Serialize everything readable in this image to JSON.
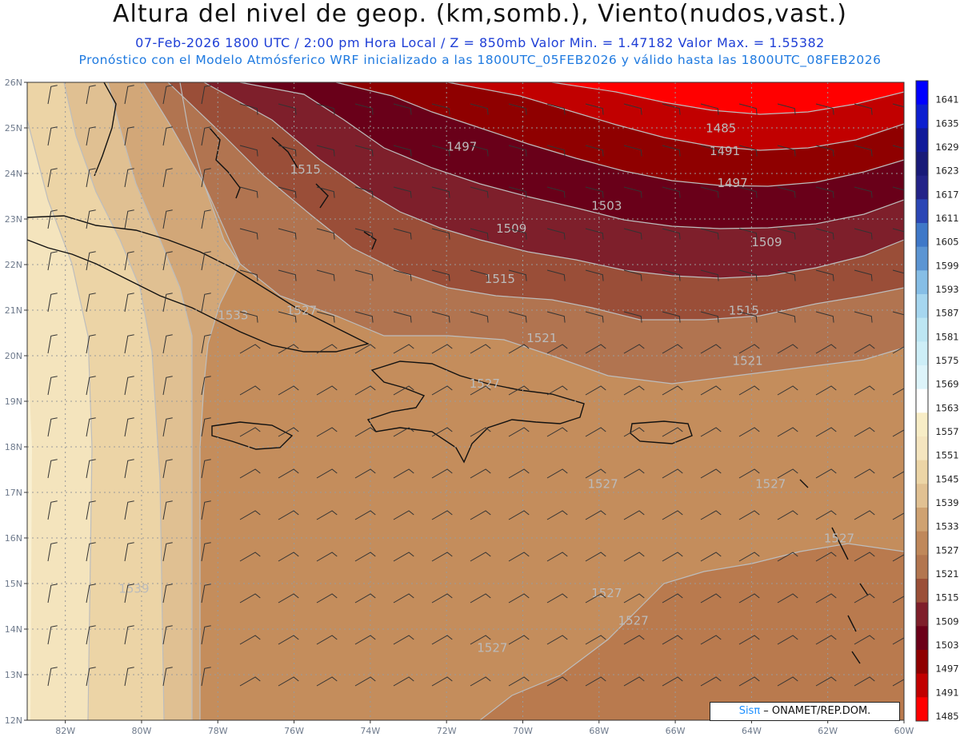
{
  "header": {
    "title": "Altura del nivel de geop. (km,somb.), Viento(nudos,vast.)",
    "line1": "07-Feb-2026  1800 UTC / 2:00 pm Hora Local / Z = 850mb    Valor Min. = 1.47182  Valor Max. = 1.55382",
    "line2": "Pronóstico con el Modelo Atmósferico WRF inicializado a las 1800UTC_05FEB2026 y válido hasta las  1800UTC_08FEB2026"
  },
  "map": {
    "lat_ticks": [
      "26N",
      "25N",
      "24N",
      "23N",
      "22N",
      "21N",
      "20N",
      "19N",
      "18N",
      "17N",
      "16N",
      "15N",
      "14N",
      "13N",
      "12N"
    ],
    "lon_ticks": [
      "82W",
      "80W",
      "78W",
      "76W",
      "74W",
      "72W",
      "70W",
      "68W",
      "66W",
      "64W",
      "62W",
      "60W"
    ],
    "contour_labels": [
      {
        "text": "1485",
        "lon": -64.8,
        "lat": 24.9
      },
      {
        "text": "1491",
        "lon": -64.7,
        "lat": 24.4
      },
      {
        "text": "1497",
        "lon": -71.6,
        "lat": 24.5
      },
      {
        "text": "1497",
        "lon": -64.5,
        "lat": 23.7
      },
      {
        "text": "1503",
        "lon": -67.8,
        "lat": 23.2
      },
      {
        "text": "1509",
        "lon": -70.3,
        "lat": 22.7
      },
      {
        "text": "1509",
        "lon": -63.6,
        "lat": 22.4
      },
      {
        "text": "1515",
        "lon": -75.7,
        "lat": 24.0
      },
      {
        "text": "1515",
        "lon": -70.6,
        "lat": 21.6
      },
      {
        "text": "1515",
        "lon": -64.2,
        "lat": 20.9
      },
      {
        "text": "1521",
        "lon": -69.5,
        "lat": 20.3
      },
      {
        "text": "1521",
        "lon": -64.1,
        "lat": 19.8
      },
      {
        "text": "1527",
        "lon": -75.8,
        "lat": 20.9
      },
      {
        "text": "1527",
        "lon": -71.0,
        "lat": 19.3
      },
      {
        "text": "1527",
        "lon": -67.9,
        "lat": 17.1
      },
      {
        "text": "1527",
        "lon": -63.5,
        "lat": 17.1
      },
      {
        "text": "1527",
        "lon": -61.7,
        "lat": 15.9
      },
      {
        "text": "1527",
        "lon": -67.8,
        "lat": 14.7
      },
      {
        "text": "1527",
        "lon": -67.1,
        "lat": 14.1
      },
      {
        "text": "1527",
        "lon": -70.8,
        "lat": 13.5
      },
      {
        "text": "1533",
        "lon": -77.6,
        "lat": 20.8
      },
      {
        "text": "1539",
        "lon": -80.2,
        "lat": 14.8
      }
    ]
  },
  "colorbar": {
    "levels": [
      "1641",
      "1635",
      "1629",
      "1623",
      "1617",
      "1611",
      "1605",
      "1599",
      "1593",
      "1587",
      "1581",
      "1575",
      "1569",
      "1563",
      "1557",
      "1551",
      "1545",
      "1539",
      "1533",
      "1527",
      "1521",
      "1515",
      "1509",
      "1503",
      "1497",
      "1491",
      "1485"
    ],
    "colors": [
      "#0000ff",
      "#0d1fd0",
      "#111a9a",
      "#181a78",
      "#232388",
      "#2b46b5",
      "#3f78c8",
      "#5c95d3",
      "#86bee6",
      "#a6d6ef",
      "#bde6f3",
      "#cdeef7",
      "#ddf4fa",
      "#ffffff",
      "#f8edc6",
      "#f5e5bf",
      "#ecd5a6",
      "#e1c192",
      "#cfa271",
      "#c0885a",
      "#b3764f",
      "#9b4f37",
      "#7f1f2a",
      "#6b0018",
      "#8f0000",
      "#c10000",
      "#ff0000"
    ]
  },
  "credit": {
    "brand": "Sisπ",
    "text": " – ONAMET/REP.DOM."
  }
}
